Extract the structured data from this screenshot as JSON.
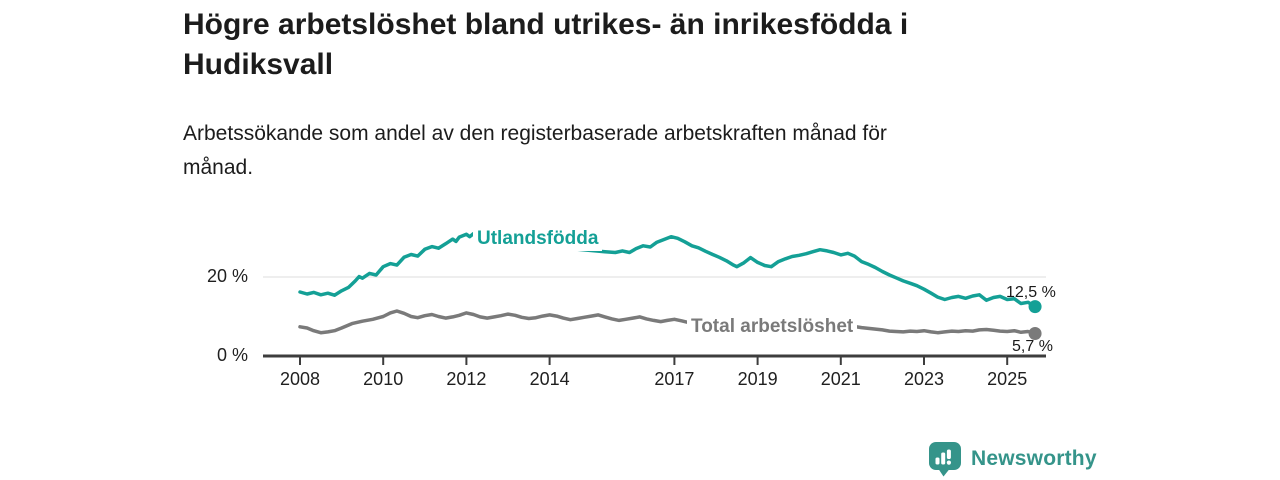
{
  "title": {
    "lines": [
      "Högre arbetslöshet bland utrikes- än inrikesfödda i",
      "Hudiksvall"
    ]
  },
  "subtitle": {
    "lines": [
      "Arbetssökande som andel av den registerbaserade arbetskraften månad för",
      "månad."
    ]
  },
  "logo": {
    "text": "Newsworthy",
    "color": "#35948a",
    "icon": "bar-chart-speech-bubble-icon"
  },
  "chart_data": {
    "type": "line",
    "title": "Högre arbetslöshet bland utrikes- än inrikesfödda i Hudiksvall",
    "subtitle": "Arbetssökande som andel av den registerbaserade arbetskraften månad för månad.",
    "xlabel": "",
    "ylabel": "",
    "x_axis": {
      "ticks": [
        2008,
        2010,
        2012,
        2014,
        2017,
        2019,
        2021,
        2023,
        2025
      ],
      "tick_labels": [
        "2008",
        "2010",
        "2012",
        "2014",
        "2017",
        "2019",
        "2021",
        "2023",
        "2025"
      ],
      "range_years": [
        2008,
        2025.67
      ]
    },
    "y_axis": {
      "ticks": [
        {
          "value": 20,
          "label": "20 %"
        },
        {
          "value": 0,
          "label": "0 %"
        }
      ],
      "ylim": [
        0,
        33
      ],
      "unit": "%"
    },
    "grid": "single horizontal gridline at 20 %",
    "legend_position": "inline-line-labels",
    "colors": {
      "foreign_born": "#14a096",
      "total": "#7a7a7a",
      "axis": "#3d3d3d",
      "gridline": "#e3e3e3"
    },
    "series": [
      {
        "name": "Utlandsfödda",
        "color": "#14a096",
        "end_value": 12.5,
        "end_label": "12,5 %",
        "points": [
          [
            2008.0,
            16.2
          ],
          [
            2008.17,
            15.7
          ],
          [
            2008.33,
            16.1
          ],
          [
            2008.5,
            15.5
          ],
          [
            2008.67,
            15.9
          ],
          [
            2008.83,
            15.4
          ],
          [
            2009.0,
            16.5
          ],
          [
            2009.17,
            17.4
          ],
          [
            2009.33,
            19.0
          ],
          [
            2009.42,
            20.1
          ],
          [
            2009.5,
            19.7
          ],
          [
            2009.67,
            20.9
          ],
          [
            2009.83,
            20.5
          ],
          [
            2010.0,
            22.6
          ],
          [
            2010.17,
            23.4
          ],
          [
            2010.33,
            23.0
          ],
          [
            2010.5,
            25.0
          ],
          [
            2010.67,
            25.7
          ],
          [
            2010.83,
            25.3
          ],
          [
            2011.0,
            27.0
          ],
          [
            2011.17,
            27.7
          ],
          [
            2011.33,
            27.3
          ],
          [
            2011.5,
            28.4
          ],
          [
            2011.67,
            29.6
          ],
          [
            2011.75,
            29.0
          ],
          [
            2011.83,
            30.1
          ],
          [
            2012.0,
            30.8
          ],
          [
            2012.08,
            30.2
          ],
          [
            2012.17,
            31.0
          ],
          [
            2012.25,
            30.6
          ],
          [
            2012.5,
            30.3
          ],
          [
            2012.75,
            29.7
          ],
          [
            2013.0,
            29.2
          ],
          [
            2013.25,
            28.8
          ],
          [
            2013.5,
            28.4
          ],
          [
            2013.75,
            28.0
          ],
          [
            2014.0,
            27.7
          ],
          [
            2014.33,
            27.3
          ],
          [
            2014.67,
            27.0
          ],
          [
            2015.0,
            26.7
          ],
          [
            2015.33,
            26.4
          ],
          [
            2015.58,
            26.2
          ],
          [
            2015.75,
            26.6
          ],
          [
            2015.92,
            26.2
          ],
          [
            2016.08,
            27.2
          ],
          [
            2016.25,
            27.9
          ],
          [
            2016.42,
            27.6
          ],
          [
            2016.58,
            28.8
          ],
          [
            2016.75,
            29.5
          ],
          [
            2016.92,
            30.2
          ],
          [
            2017.08,
            29.8
          ],
          [
            2017.25,
            28.9
          ],
          [
            2017.42,
            27.9
          ],
          [
            2017.58,
            27.4
          ],
          [
            2017.75,
            26.5
          ],
          [
            2017.92,
            25.7
          ],
          [
            2018.08,
            25.0
          ],
          [
            2018.25,
            24.1
          ],
          [
            2018.42,
            23.0
          ],
          [
            2018.5,
            22.6
          ],
          [
            2018.67,
            23.6
          ],
          [
            2018.83,
            24.9
          ],
          [
            2019.0,
            23.7
          ],
          [
            2019.17,
            22.9
          ],
          [
            2019.33,
            22.6
          ],
          [
            2019.5,
            23.9
          ],
          [
            2019.67,
            24.6
          ],
          [
            2019.83,
            25.2
          ],
          [
            2020.0,
            25.5
          ],
          [
            2020.17,
            25.9
          ],
          [
            2020.33,
            26.4
          ],
          [
            2020.5,
            26.9
          ],
          [
            2020.67,
            26.6
          ],
          [
            2020.83,
            26.2
          ],
          [
            2021.0,
            25.6
          ],
          [
            2021.17,
            26.0
          ],
          [
            2021.33,
            25.3
          ],
          [
            2021.5,
            23.9
          ],
          [
            2021.67,
            23.2
          ],
          [
            2021.83,
            22.4
          ],
          [
            2022.0,
            21.4
          ],
          [
            2022.17,
            20.5
          ],
          [
            2022.33,
            19.8
          ],
          [
            2022.5,
            19.0
          ],
          [
            2022.67,
            18.4
          ],
          [
            2022.83,
            17.8
          ],
          [
            2023.0,
            16.9
          ],
          [
            2023.17,
            15.9
          ],
          [
            2023.33,
            14.9
          ],
          [
            2023.5,
            14.3
          ],
          [
            2023.67,
            14.8
          ],
          [
            2023.83,
            15.1
          ],
          [
            2024.0,
            14.6
          ],
          [
            2024.17,
            15.2
          ],
          [
            2024.33,
            15.5
          ],
          [
            2024.5,
            14.1
          ],
          [
            2024.67,
            14.8
          ],
          [
            2024.83,
            15.1
          ],
          [
            2025.0,
            14.3
          ],
          [
            2025.17,
            14.5
          ],
          [
            2025.33,
            13.3
          ],
          [
            2025.5,
            13.6
          ],
          [
            2025.58,
            13.1
          ],
          [
            2025.67,
            12.5
          ]
        ]
      },
      {
        "name": "Total arbetslöshet",
        "color": "#7a7a7a",
        "end_value": 5.7,
        "end_label": "5,7 %",
        "points": [
          [
            2008.0,
            7.4
          ],
          [
            2008.17,
            7.1
          ],
          [
            2008.33,
            6.4
          ],
          [
            2008.5,
            5.9
          ],
          [
            2008.67,
            6.1
          ],
          [
            2008.83,
            6.4
          ],
          [
            2009.0,
            7.1
          ],
          [
            2009.25,
            8.2
          ],
          [
            2009.5,
            8.8
          ],
          [
            2009.75,
            9.3
          ],
          [
            2010.0,
            10.0
          ],
          [
            2010.17,
            10.9
          ],
          [
            2010.33,
            11.4
          ],
          [
            2010.5,
            10.8
          ],
          [
            2010.67,
            10.0
          ],
          [
            2010.83,
            9.7
          ],
          [
            2011.0,
            10.2
          ],
          [
            2011.17,
            10.5
          ],
          [
            2011.33,
            10.0
          ],
          [
            2011.5,
            9.6
          ],
          [
            2011.67,
            9.9
          ],
          [
            2011.83,
            10.3
          ],
          [
            2012.0,
            10.9
          ],
          [
            2012.17,
            10.5
          ],
          [
            2012.33,
            9.9
          ],
          [
            2012.5,
            9.6
          ],
          [
            2012.67,
            9.9
          ],
          [
            2012.83,
            10.2
          ],
          [
            2013.0,
            10.6
          ],
          [
            2013.17,
            10.3
          ],
          [
            2013.33,
            9.8
          ],
          [
            2013.5,
            9.5
          ],
          [
            2013.67,
            9.7
          ],
          [
            2013.83,
            10.1
          ],
          [
            2014.0,
            10.4
          ],
          [
            2014.17,
            10.1
          ],
          [
            2014.33,
            9.6
          ],
          [
            2014.5,
            9.2
          ],
          [
            2014.67,
            9.5
          ],
          [
            2014.83,
            9.8
          ],
          [
            2015.0,
            10.1
          ],
          [
            2015.17,
            10.4
          ],
          [
            2015.33,
            9.9
          ],
          [
            2015.5,
            9.4
          ],
          [
            2015.67,
            9.0
          ],
          [
            2015.83,
            9.3
          ],
          [
            2016.0,
            9.6
          ],
          [
            2016.17,
            9.9
          ],
          [
            2016.33,
            9.4
          ],
          [
            2016.5,
            9.0
          ],
          [
            2016.67,
            8.7
          ],
          [
            2016.83,
            9.0
          ],
          [
            2017.0,
            9.3
          ],
          [
            2017.17,
            8.9
          ],
          [
            2017.33,
            8.5
          ],
          [
            2017.5,
            8.2
          ],
          [
            2017.75,
            7.9
          ],
          [
            2018.0,
            8.1
          ],
          [
            2018.25,
            7.7
          ],
          [
            2018.5,
            7.4
          ],
          [
            2018.75,
            7.6
          ],
          [
            2019.0,
            7.5
          ],
          [
            2019.25,
            7.2
          ],
          [
            2019.5,
            7.3
          ],
          [
            2019.75,
            7.6
          ],
          [
            2020.0,
            7.9
          ],
          [
            2020.25,
            8.4
          ],
          [
            2020.5,
            8.6
          ],
          [
            2020.75,
            8.3
          ],
          [
            2021.0,
            8.0
          ],
          [
            2021.25,
            7.6
          ],
          [
            2021.5,
            7.2
          ],
          [
            2021.75,
            6.9
          ],
          [
            2022.0,
            6.6
          ],
          [
            2022.17,
            6.3
          ],
          [
            2022.33,
            6.2
          ],
          [
            2022.5,
            6.1
          ],
          [
            2022.67,
            6.3
          ],
          [
            2022.83,
            6.2
          ],
          [
            2023.0,
            6.4
          ],
          [
            2023.17,
            6.1
          ],
          [
            2023.33,
            5.9
          ],
          [
            2023.5,
            6.1
          ],
          [
            2023.67,
            6.3
          ],
          [
            2023.83,
            6.2
          ],
          [
            2024.0,
            6.4
          ],
          [
            2024.17,
            6.3
          ],
          [
            2024.33,
            6.6
          ],
          [
            2024.5,
            6.7
          ],
          [
            2024.67,
            6.5
          ],
          [
            2024.83,
            6.3
          ],
          [
            2025.0,
            6.2
          ],
          [
            2025.17,
            6.4
          ],
          [
            2025.33,
            6.0
          ],
          [
            2025.5,
            6.2
          ],
          [
            2025.67,
            5.7
          ]
        ]
      }
    ]
  }
}
